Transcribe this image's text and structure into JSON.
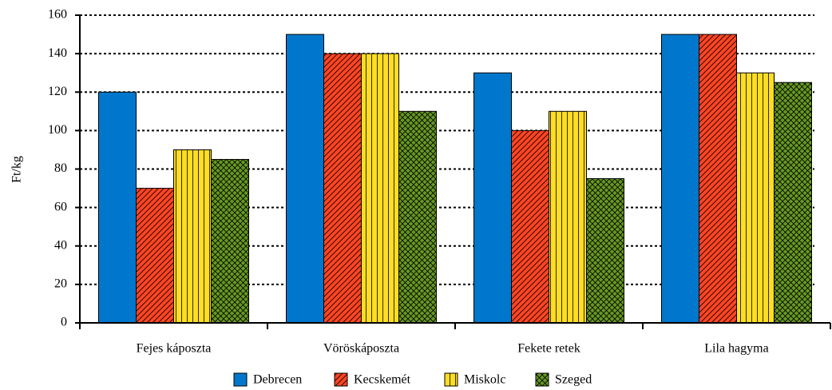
{
  "chart_data": {
    "type": "bar",
    "y_label": "Ft/kg",
    "categories": [
      "Fejes káposzta",
      "Vöröskáposzta",
      "Fekete retek",
      "Lila hagyma"
    ],
    "series": [
      {
        "name": "Debrecen",
        "color": "#0077cc",
        "pattern": "solid",
        "values": [
          120,
          150,
          130,
          150
        ]
      },
      {
        "name": "Kecskemét",
        "color": "#ff4422",
        "pattern": "diagonal",
        "values": [
          70,
          140,
          100,
          150
        ]
      },
      {
        "name": "Miskolc",
        "color": "#ffdd22",
        "pattern": "vertical",
        "values": [
          90,
          140,
          110,
          130
        ]
      },
      {
        "name": "Szeged",
        "color": "#669922",
        "pattern": "crosshatch",
        "values": [
          85,
          110,
          75,
          125
        ]
      }
    ],
    "ylim": [
      0,
      160
    ],
    "yticks": [
      0,
      20,
      40,
      60,
      80,
      100,
      120,
      140,
      160
    ],
    "grid": true,
    "legend": "bottom"
  }
}
